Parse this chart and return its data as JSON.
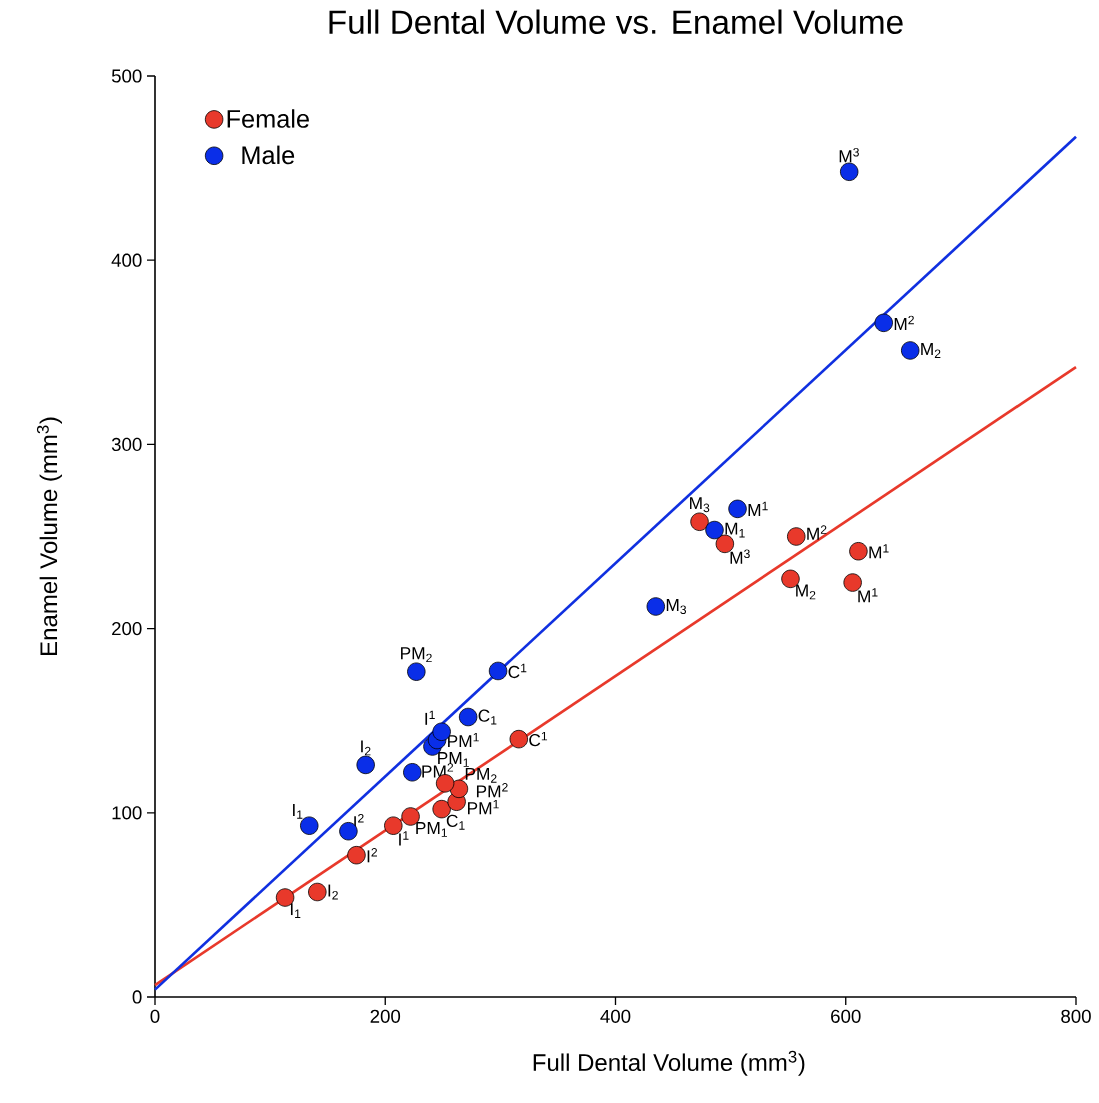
{
  "chart_data": {
    "type": "scatter",
    "title": "Full Dental Volume vs. Enamel Volume",
    "xlabel": "Full Dental Volume (mm$^{3}$)",
    "ylabel": "Enamel Volume (mm$^{3}$)",
    "xlim": [
      0,
      800
    ],
    "ylim": [
      0,
      500
    ],
    "xticks": [
      0,
      200,
      400,
      600,
      800
    ],
    "yticks": [
      0,
      100,
      200,
      300,
      400,
      500
    ],
    "legend": "top left",
    "series": [
      {
        "name": "Female",
        "type": "scatter",
        "marker": "circle",
        "color": "#e8392b",
        "x": [
          113,
          141,
          175,
          207,
          222,
          249,
          262,
          264,
          252,
          316,
          473,
          495,
          557,
          552,
          611,
          606
        ],
        "values": [
          54,
          57,
          77,
          93,
          98,
          102,
          106,
          113,
          116,
          140,
          258,
          246,
          250,
          227,
          242,
          225
        ]
      },
      {
        "name": "Male",
        "type": "scatter",
        "marker": "circle",
        "color": "#0a2ee8",
        "x": [
          134,
          168,
          183,
          223.5,
          241,
          245,
          249,
          272,
          298,
          227,
          435,
          486,
          506,
          603,
          633,
          656
        ],
        "values": [
          93,
          90,
          126,
          122,
          136,
          139.5,
          144,
          152,
          177,
          176.6,
          212,
          253.5,
          265,
          448,
          366,
          351
        ]
      },
      {
        "type": "line",
        "color": "#e8392b",
        "x": [
          0,
          800
        ],
        "values": [
          6.5,
          342
        ]
      },
      {
        "type": "line",
        "color": "#1030e0",
        "x": [
          0,
          800
        ],
        "values": [
          4,
          467
        ]
      }
    ],
    "annotations": [
      {
        "text": "I$_{1}$",
        "x": 113,
        "y": 54
      },
      {
        "text": "I$_{2}$",
        "x": 141,
        "y": 57
      },
      {
        "text": "I$^{2}$",
        "x": 175,
        "y": 77
      },
      {
        "text": "I$^{1}$",
        "x": 207,
        "y": 93
      },
      {
        "text": "PM$_{1}$",
        "x": 222,
        "y": 98
      },
      {
        "text": "C$_{1}$",
        "x": 249,
        "y": 102
      },
      {
        "text": "PM$^{1}$",
        "x": 262,
        "y": 106
      },
      {
        "text": "PM$^{2}$",
        "x": 264,
        "y": 113
      },
      {
        "text": "PM$_{2}$",
        "x": 252,
        "y": 116
      },
      {
        "text": "C$^{1}$",
        "x": 316,
        "y": 140
      },
      {
        "text": "M$_{3}$",
        "x": 473,
        "y": 258
      },
      {
        "text": "M$^{3}$",
        "x": 495,
        "y": 246
      },
      {
        "text": "M$^{2}$",
        "x": 557,
        "y": 250
      },
      {
        "text": "M$_{2}$",
        "x": 552,
        "y": 227
      },
      {
        "text": "M$^{1}$",
        "x": 611,
        "y": 242
      },
      {
        "text": "M$^{1}$",
        "x": 606,
        "y": 225
      },
      {
        "text": "I$_{1}$",
        "x": 134,
        "y": 93
      },
      {
        "text": "I$^{2}$",
        "x": 168,
        "y": 90
      },
      {
        "text": "I$_{2}$",
        "x": 183,
        "y": 126
      },
      {
        "text": "PM$^{2}$",
        "x": 223.5,
        "y": 122
      },
      {
        "text": "PM$_{1}$",
        "x": 241,
        "y": 136
      },
      {
        "text": "PM$^{1}$",
        "x": 245,
        "y": 139.5
      },
      {
        "text": "I$^{1}$",
        "x": 249,
        "y": 144
      },
      {
        "text": "C$_{1}$",
        "x": 272,
        "y": 152
      },
      {
        "text": "C$^{1}$",
        "x": 298,
        "y": 177
      },
      {
        "text": "PM$_{2}$",
        "x": 227,
        "y": 176.6
      },
      {
        "text": "M$_{3}$",
        "x": 435,
        "y": 212
      },
      {
        "text": "M$_{1}$",
        "x": 486,
        "y": 253.5
      },
      {
        "text": "M$^{1}$",
        "x": 506,
        "y": 265
      },
      {
        "text": "M$^{3}$",
        "x": 603,
        "y": 448
      },
      {
        "text": "M$^{2}$",
        "x": 633,
        "y": 366
      },
      {
        "text": "M$_{2}$",
        "x": 656,
        "y": 351
      }
    ]
  }
}
